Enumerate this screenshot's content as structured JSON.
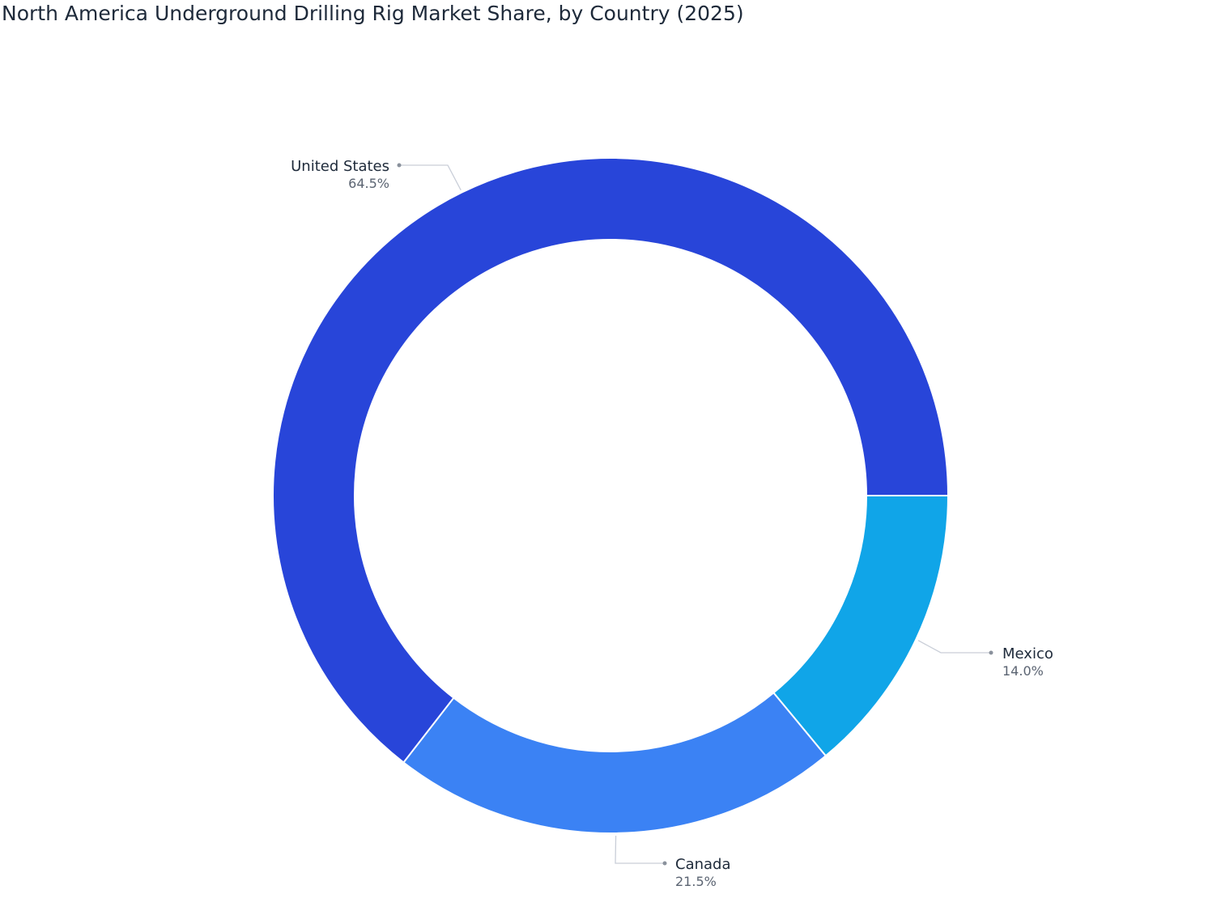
{
  "chart_data": {
    "type": "pie",
    "title": "North America Underground Drilling Rig Market Share, by Country (2025)",
    "donut": true,
    "legend": "none",
    "slices": [
      {
        "label": "Mexico",
        "value": 14.0,
        "display": "14.0%",
        "color": "#10a5e8"
      },
      {
        "label": "Canada",
        "value": 21.5,
        "display": "21.5%",
        "color": "#3b82f4"
      },
      {
        "label": "United States",
        "value": 64.5,
        "display": "64.5%",
        "color": "#2845d9"
      }
    ],
    "connector_color": "#c9ced8",
    "dot_color": "#8a919c"
  }
}
